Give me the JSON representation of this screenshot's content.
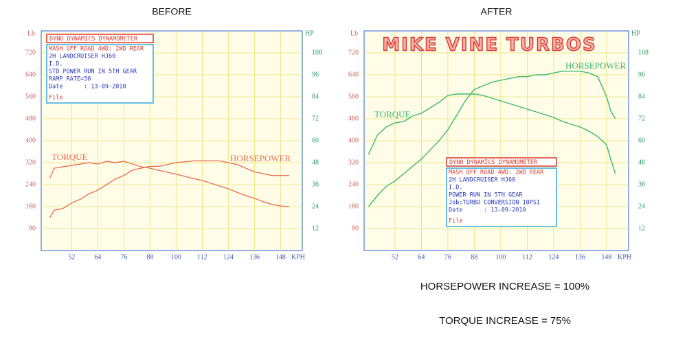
{
  "chart_data": [
    {
      "type": "line",
      "title": "BEFORE",
      "y_label": "Lb",
      "y2_label": "HP",
      "x_label": "KPH",
      "xlim": [
        38,
        158
      ],
      "xticks": [
        52,
        64,
        76,
        88,
        100,
        112,
        124,
        136,
        148
      ],
      "ylim": [
        0,
        800
      ],
      "yticks": [
        80,
        160,
        240,
        320,
        400,
        480,
        560,
        640,
        720
      ],
      "y2lim": [
        0,
        120
      ],
      "y2ticks": [
        12,
        24,
        36,
        48,
        60,
        72,
        84,
        96,
        108
      ],
      "grid": true,
      "x": [
        42,
        44,
        48,
        52,
        56,
        60,
        64,
        68,
        72,
        76,
        80,
        84,
        88,
        92,
        96,
        100,
        104,
        108,
        112,
        116,
        120,
        124,
        128,
        132,
        136,
        140,
        144,
        148,
        152
      ],
      "series": [
        {
          "name": "TORQUE",
          "color": "#e8735a",
          "values": [
            265,
            300,
            305,
            310,
            315,
            320,
            315,
            325,
            320,
            325,
            315,
            305,
            300,
            292,
            285,
            278,
            270,
            262,
            255,
            245,
            235,
            225,
            212,
            200,
            190,
            178,
            168,
            162,
            160
          ]
        },
        {
          "name": "HORSEPOWER",
          "color": "#e8735a",
          "axis": "y2",
          "values": [
            18,
            22,
            23,
            26,
            28,
            31,
            33,
            36,
            39,
            41,
            44,
            45,
            46,
            46,
            47,
            48,
            48.5,
            49,
            49,
            49,
            49,
            48,
            47,
            45,
            43,
            42,
            41,
            41,
            41
          ]
        }
      ],
      "info_box": {
        "header": "DYNO DYNAMICS DYNAMOMETER",
        "lines": [
          "MASH OFF ROAD 4WD: 2WD REAR",
          "2H LANDCRUISER HJ60",
          "I.D.",
          "STD POWER RUN IN 5TH GEAR",
          "RAMP RATE=50",
          "Date      : 13-09-2010",
          "File"
        ]
      }
    },
    {
      "type": "line",
      "title": "AFTER",
      "y_label": "Lb",
      "y2_label": "HP",
      "x_label": "KPH",
      "banner": "MIKE VINE TURBOS",
      "xlim": [
        38,
        158
      ],
      "xticks": [
        52,
        64,
        76,
        88,
        100,
        112,
        124,
        136,
        148
      ],
      "ylim": [
        0,
        800
      ],
      "yticks": [
        80,
        160,
        240,
        320,
        400,
        480,
        560,
        640,
        720
      ],
      "y2lim": [
        0,
        120
      ],
      "y2ticks": [
        12,
        24,
        36,
        48,
        60,
        72,
        84,
        96,
        108
      ],
      "grid": true,
      "x": [
        40,
        44,
        48,
        52,
        56,
        60,
        64,
        68,
        72,
        76,
        80,
        84,
        88,
        92,
        96,
        100,
        104,
        108,
        112,
        116,
        120,
        124,
        128,
        132,
        136,
        140,
        144,
        148,
        150,
        152
      ],
      "series": [
        {
          "name": "TORQUE",
          "color": "#3cb96a",
          "values": [
            350,
            420,
            450,
            465,
            470,
            490,
            500,
            520,
            540,
            565,
            570,
            570,
            570,
            565,
            555,
            545,
            535,
            525,
            515,
            505,
            495,
            485,
            470,
            460,
            450,
            435,
            415,
            385,
            330,
            280
          ]
        },
        {
          "name": "HORSEPOWER",
          "color": "#3cb96a",
          "axis": "y2",
          "values": [
            24,
            30,
            35,
            38,
            42,
            46,
            50,
            55,
            60,
            66,
            74,
            82,
            88,
            90,
            92,
            93,
            94,
            95,
            95,
            96,
            96,
            97,
            98,
            98,
            98,
            97,
            95,
            84,
            76,
            72
          ]
        }
      ],
      "info_box": {
        "header": "DYNO DYNAMICS DYNAMOMETER",
        "lines": [
          "MASH OFF ROAD 4WD: 2WD REAR",
          "2H LANDCRUISER HJ60",
          "I.D.",
          "POWER RUN IN 5TH GEAR",
          "Job:TURBO CONVERSION 10PSI",
          "Date      : 13-09-2010",
          "File"
        ]
      }
    }
  ],
  "notes": [
    "HORSEPOWER INCREASE = 100%",
    "TORQUE INCREASE = 75%"
  ]
}
